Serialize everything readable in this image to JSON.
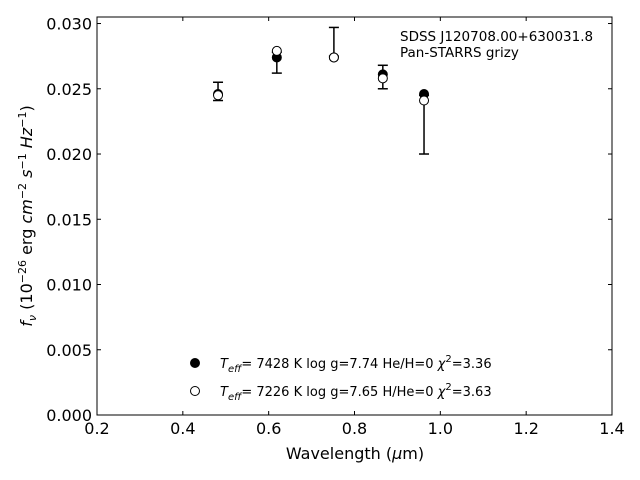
{
  "chart_data": {
    "type": "scatter",
    "title": "",
    "xlabel": "Wavelength (μm)",
    "ylabel": "fν (10⁻²⁶ erg cm⁻² s⁻¹ Hz⁻¹)",
    "xlim": [
      0.2,
      1.4
    ],
    "ylim": [
      0.0,
      0.0305
    ],
    "xticks": [
      "0.2",
      "0.4",
      "0.6",
      "0.8",
      "1.0",
      "1.2",
      "1.4"
    ],
    "yticks": [
      "0.000",
      "0.005",
      "0.010",
      "0.015",
      "0.020",
      "0.025",
      "0.030"
    ],
    "grid": false,
    "annotation": [
      "SDSS J120708.00+630031.8",
      "Pan-STARRS grizy"
    ],
    "observed": {
      "x": [
        0.482,
        0.619,
        0.752,
        0.866,
        0.962
      ],
      "y": [
        0.0248,
        0.0275,
        0.0275,
        0.0259,
        0.0243
      ],
      "yerr_low": [
        0.0241,
        0.0262,
        0.0275,
        0.025,
        0.02
      ],
      "yerr_high": [
        0.0255,
        0.0278,
        0.0297,
        0.0268,
        0.0245
      ]
    },
    "series": [
      {
        "marker": "filled-circle",
        "x": [
          0.482,
          0.619,
          0.752,
          0.866,
          0.962
        ],
        "y": [
          0.0246,
          0.0274,
          0.0274,
          0.0261,
          0.0246
        ]
      },
      {
        "marker": "open-circle",
        "x": [
          0.482,
          0.619,
          0.752,
          0.866,
          0.962
        ],
        "y": [
          0.0245,
          0.0279,
          0.0274,
          0.0258,
          0.0241
        ]
      }
    ],
    "legend": {
      "placement": "lower-center",
      "entries": [
        {
          "teff": "7428 K",
          "logg": "log g=7.74",
          "comp": "He/H=0",
          "chi2": "=3.36"
        },
        {
          "teff": "7226 K",
          "logg": "log g=7.65",
          "comp": "H/He=0",
          "chi2": "=3.63"
        }
      ]
    }
  }
}
